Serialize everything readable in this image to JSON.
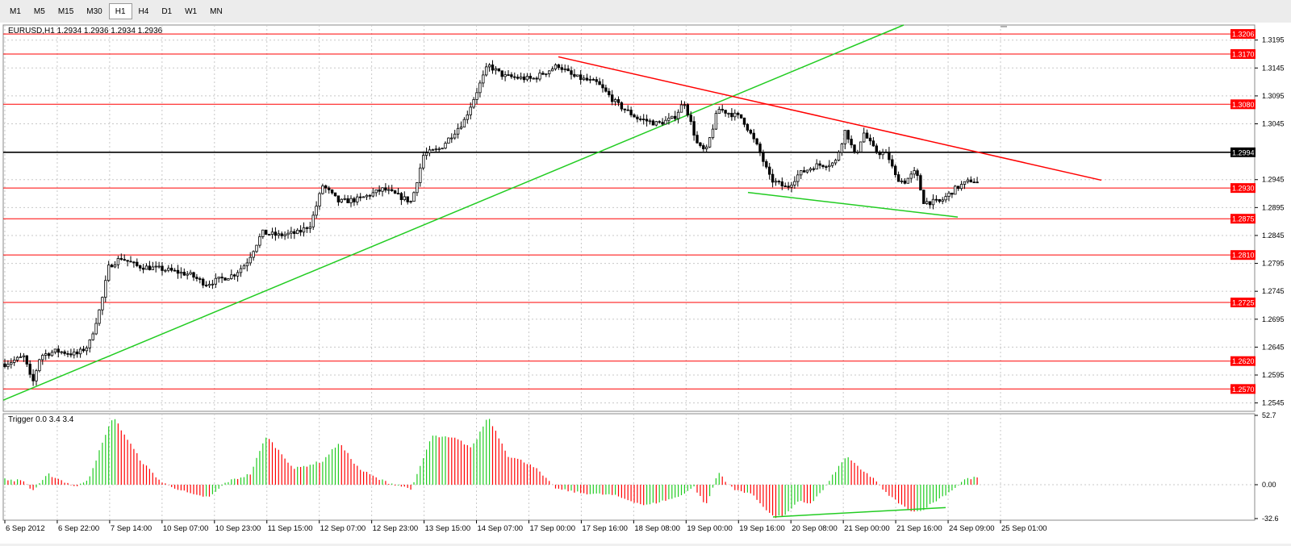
{
  "toolbar": {
    "timeframes": [
      "M1",
      "M5",
      "M15",
      "M30",
      "H1",
      "H4",
      "D1",
      "W1",
      "MN"
    ],
    "active": "H1"
  },
  "chart": {
    "symbol_info": "EURUSD,H1  1.2934 1.2936 1.2934 1.2936",
    "price_axis": {
      "min": 1.253,
      "max": 1.3222,
      "ticks": [
        "1.3195",
        "1.3145",
        "1.3095",
        "1.3045",
        "1.2945",
        "1.2895",
        "1.2845",
        "1.2795",
        "1.2745",
        "1.2695",
        "1.2645",
        "1.2595",
        "1.2545"
      ]
    },
    "horizontal_levels": [
      {
        "price": 1.3206,
        "label": "1.3206",
        "color": "#ff0000"
      },
      {
        "price": 1.317,
        "label": "1.3170",
        "color": "#ff0000"
      },
      {
        "price": 1.308,
        "label": "1.3080",
        "color": "#ff0000"
      },
      {
        "price": 1.2994,
        "label": "1.2994",
        "color": "#000000"
      },
      {
        "price": 1.293,
        "label": "1.2930",
        "color": "#ff0000"
      },
      {
        "price": 1.2875,
        "label": "1.2875",
        "color": "#ff0000"
      },
      {
        "price": 1.281,
        "label": "1.2810",
        "color": "#ff0000"
      },
      {
        "price": 1.2725,
        "label": "1.2725",
        "color": "#ff0000"
      },
      {
        "price": 1.262,
        "label": "1.2620",
        "color": "#ff0000"
      },
      {
        "price": 1.257,
        "label": "1.2570",
        "color": "#ff0000"
      }
    ],
    "colors": {
      "level": "#ff0000",
      "support_trend": "#22cc22",
      "resistance_trend": "#ff0000",
      "candle_body": "#000000"
    }
  },
  "indicator": {
    "label": "Trigger 0.0 3.4 3.4",
    "axis_ticks": [
      "52.7",
      "0.00",
      "-32.6"
    ],
    "max": 52.7,
    "min": -32.6,
    "colors": {
      "up": "#22cc22",
      "down": "#ff0000"
    }
  },
  "time_axis": {
    "labels": [
      "6 Sep 2012",
      "6 Sep 22:00",
      "7 Sep 14:00",
      "10 Sep 07:00",
      "10 Sep 23:00",
      "11 Sep 15:00",
      "12 Sep 07:00",
      "12 Sep 23:00",
      "13 Sep 15:00",
      "14 Sep 07:00",
      "17 Sep 00:00",
      "17 Sep 16:00",
      "18 Sep 08:00",
      "19 Sep 00:00",
      "19 Sep 16:00",
      "20 Sep 08:00",
      "21 Sep 00:00",
      "21 Sep 16:00",
      "24 Sep 09:00",
      "25 Sep 01:00"
    ]
  }
}
